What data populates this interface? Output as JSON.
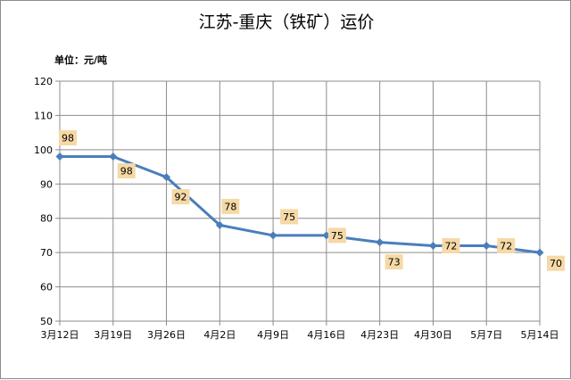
{
  "chart_data": {
    "type": "line",
    "title": "江苏-重庆（铁矿）运价",
    "unit_label": "单位：元/吨",
    "categories": [
      "3月12日",
      "3月19日",
      "3月26日",
      "4月2日",
      "4月9日",
      "4月16日",
      "4月23日",
      "4月30日",
      "5月7日",
      "5月14日"
    ],
    "series": [
      {
        "values": [
          98,
          98,
          92,
          78,
          75,
          75,
          73,
          72,
          72,
          70
        ]
      }
    ],
    "ylim": [
      50,
      120
    ],
    "yticks": [
      50,
      60,
      70,
      80,
      90,
      100,
      110,
      120
    ],
    "grid": true,
    "legend": "none",
    "colors": {
      "line": "#4a7ebb",
      "label_bg": "#f5d9a6",
      "grid": "#8c8c8c"
    }
  }
}
